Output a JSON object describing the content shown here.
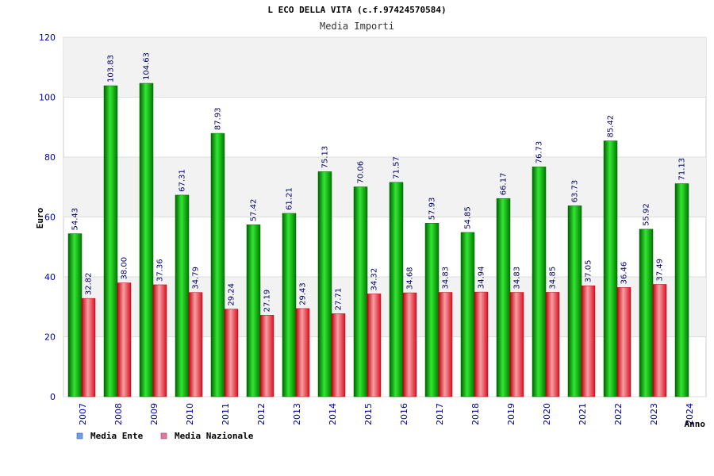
{
  "chart_data": {
    "type": "bar",
    "title": "L ECO DELLA VITA (c.f.97424570584)",
    "subtitle": "Media Importi",
    "xlabel": "Anno",
    "ylabel": "Euro",
    "ylim": [
      0,
      120
    ],
    "yticks": [
      "0",
      "20",
      "40",
      "60",
      "80",
      "100",
      "120"
    ],
    "categories": [
      "2007",
      "2008",
      "2009",
      "2010",
      "2011",
      "2012",
      "2013",
      "2014",
      "2015",
      "2016",
      "2017",
      "2018",
      "2019",
      "2020",
      "2021",
      "2022",
      "2023",
      "2024"
    ],
    "series": [
      {
        "name": "Media Ente",
        "values": [
          54.43,
          103.83,
          104.63,
          67.31,
          87.93,
          57.42,
          61.21,
          75.13,
          70.06,
          71.57,
          57.93,
          54.85,
          66.17,
          76.73,
          63.73,
          85.42,
          55.92,
          71.13
        ],
        "labels": [
          "54.43",
          "103.83",
          "104.63",
          "67.31",
          "87.93",
          "57.42",
          "61.21",
          "75.13",
          "70.06",
          "71.57",
          "57.93",
          "54.85",
          "66.17",
          "76.73",
          "63.73",
          "85.42",
          "55.92",
          "71.13"
        ]
      },
      {
        "name": "Media Nazionale",
        "values": [
          32.82,
          38.0,
          37.36,
          34.79,
          29.24,
          27.19,
          29.43,
          27.71,
          34.32,
          34.68,
          34.83,
          34.94,
          34.83,
          34.85,
          37.05,
          36.46,
          37.49,
          null
        ],
        "labels": [
          "32.82",
          "38.00",
          "37.36",
          "34.79",
          "29.24",
          "27.19",
          "29.43",
          "27.71",
          "34.32",
          "34.68",
          "34.83",
          "34.94",
          "34.83",
          "34.85",
          "37.05",
          "36.46",
          "37.49",
          ""
        ]
      }
    ],
    "legend": [
      "Media Ente",
      "Media Nazionale"
    ],
    "legend_position": "bottom-left",
    "grid": true
  },
  "colors": {
    "ente": "#00a000",
    "ente_dark": "#006400",
    "ente_light": "#33e633",
    "naz": "#e8202a",
    "naz_dark": "#c00010",
    "naz_light": "#f6a0a4",
    "legend_ente": "#6a9ee8",
    "legend_naz": "#e07aa0",
    "axis_text": "#0000aa",
    "label_text": "#000066",
    "band": "#f2f2f2"
  }
}
